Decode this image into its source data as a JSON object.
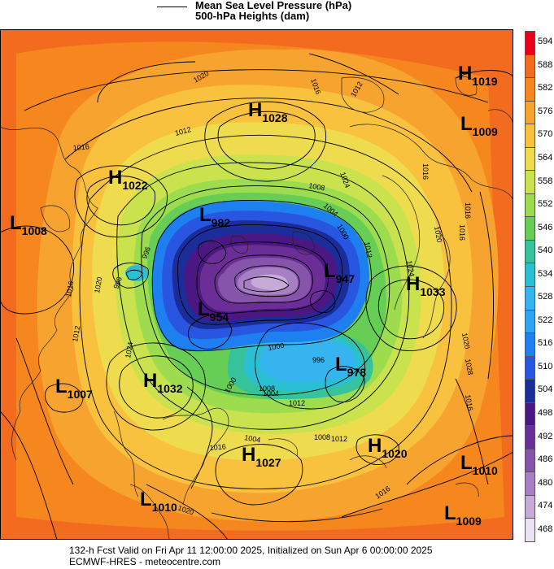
{
  "legend": {
    "title1": "Mean Sea Level Pressure (hPa)",
    "title2": "500-hPa Heights (dam)"
  },
  "colorbar": {
    "labels": [
      "594",
      "588",
      "582",
      "576",
      "570",
      "564",
      "558",
      "552",
      "546",
      "540",
      "534",
      "528",
      "522",
      "516",
      "510",
      "504",
      "498",
      "492",
      "486",
      "480",
      "474",
      "468"
    ],
    "colors": [
      "#e8001a",
      "#f36b1e",
      "#f6871f",
      "#f7a330",
      "#f8c23e",
      "#eedb4e",
      "#c9e24e",
      "#9cdc4e",
      "#66cd55",
      "#36c29a",
      "#2bbfd3",
      "#35b4f0",
      "#2ea3f2",
      "#1d7ff0",
      "#2856e0",
      "#1b2d9a",
      "#4b1782",
      "#6b2e97",
      "#8754ab",
      "#a77fc3",
      "#c8aad9",
      "#ece3f2"
    ]
  },
  "pressure_centers": [
    {
      "type": "H",
      "value": "1019"
    },
    {
      "type": "L",
      "value": "1009"
    },
    {
      "type": "H",
      "value": "1028"
    },
    {
      "type": "H",
      "value": "1022"
    },
    {
      "type": "L",
      "value": "1008"
    },
    {
      "type": "L",
      "value": "982"
    },
    {
      "type": "L",
      "value": "947"
    },
    {
      "type": "H",
      "value": "1033"
    },
    {
      "type": "L",
      "value": "954"
    },
    {
      "type": "L",
      "value": "978"
    },
    {
      "type": "L",
      "value": "1007"
    },
    {
      "type": "H",
      "value": "1032"
    },
    {
      "type": "H",
      "value": "1020"
    },
    {
      "type": "H",
      "value": "1027"
    },
    {
      "type": "L",
      "value": "1010"
    },
    {
      "type": "L",
      "value": "1010"
    },
    {
      "type": "L",
      "value": "1009"
    }
  ],
  "isobar_labels": [
    "1020",
    "1016",
    "1012",
    "1016",
    "1012",
    "1024",
    "1016",
    "1020",
    "1008",
    "1004",
    "1000",
    "1012",
    "1024",
    "1020",
    "1028",
    "1016",
    "996",
    "1020",
    "996",
    "1000",
    "996",
    "1012",
    "1016",
    "1004",
    "1012",
    "1008",
    "1008",
    "1004",
    "1016",
    "1000",
    "1024",
    "1012",
    "1016",
    "1020",
    "1016",
    "1016"
  ],
  "footer": {
    "line1": "132-h Fcst Valid on Fri Apr 11 12:00:00 2025, Initialized on Sun Apr  6 00:00:00 2025",
    "line2": "ECMWF-HRES  - meteocentre.com"
  }
}
